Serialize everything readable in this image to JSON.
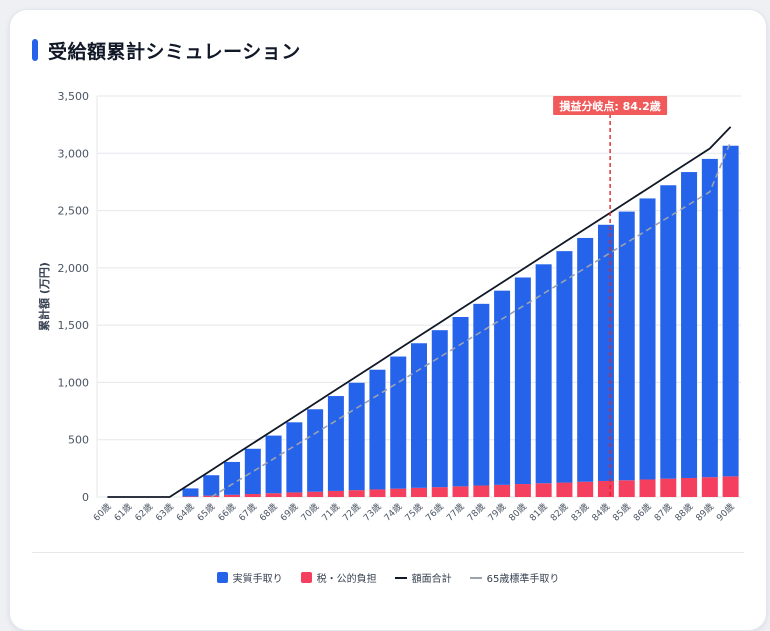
{
  "title": "受給額累計シミュレーション",
  "colors": {
    "net": "#2563eb",
    "tax": "#f43f5e",
    "gross": "#111827",
    "standard": "#9ca3af",
    "breakeven": "#dc2626",
    "breakeven_label_bg": "#f05a5a"
  },
  "chart_data": {
    "type": "bar",
    "ylabel": "累計額 (万円)",
    "ylim": [
      0,
      3500
    ],
    "yticks": [
      0,
      500,
      1000,
      1500,
      2000,
      2500,
      3000,
      3500
    ],
    "ytick_labels": [
      "0",
      "500",
      "1,000",
      "1,500",
      "2,000",
      "2,500",
      "3,000",
      "3,500"
    ],
    "grid": true,
    "legend_position": "bottom",
    "categories": [
      "60歳",
      "61歳",
      "62歳",
      "63歳",
      "64歳",
      "65歳",
      "66歳",
      "67歳",
      "68歳",
      "69歳",
      "70歳",
      "71歳",
      "72歳",
      "73歳",
      "74歳",
      "75歳",
      "76歳",
      "77歳",
      "78歳",
      "79歳",
      "80歳",
      "81歳",
      "82歳",
      "83歳",
      "84歳",
      "85歳",
      "86歳",
      "87歳",
      "88歳",
      "89歳",
      "90歳"
    ],
    "series": [
      {
        "name": "実質手取り",
        "kind": "bar-stack",
        "values": [
          0,
          0,
          0,
          0,
          70,
          178,
          287,
          395,
          503,
          612,
          720,
          828,
          937,
          1045,
          1153,
          1262,
          1370,
          1478,
          1586,
          1695,
          1803,
          1911,
          2020,
          2128,
          2236,
          2345,
          2453,
          2561,
          2670,
          2778,
          2886
        ]
      },
      {
        "name": "税・公的負担",
        "kind": "bar-stack",
        "values": [
          0,
          0,
          0,
          0,
          5,
          12,
          19,
          26,
          33,
          40,
          46,
          53,
          60,
          66,
          73,
          80,
          86,
          93,
          100,
          106,
          113,
          120,
          126,
          133,
          140,
          146,
          153,
          160,
          166,
          173,
          180
        ]
      },
      {
        "name": "額面合計",
        "kind": "line",
        "values": [
          0,
          0,
          0,
          0,
          117,
          234,
          351,
          468,
          585,
          702,
          819,
          936,
          1053,
          1170,
          1287,
          1404,
          1521,
          1638,
          1755,
          1872,
          1989,
          2106,
          2223,
          2340,
          2457,
          2574,
          2691,
          2808,
          2925,
          3042,
          3230
        ]
      },
      {
        "name": "65歳標準手取り",
        "kind": "line-dashed",
        "values": [
          null,
          null,
          null,
          null,
          null,
          0,
          111,
          222,
          333,
          444,
          555,
          666,
          777,
          888,
          999,
          1110,
          1221,
          1332,
          1443,
          1554,
          1665,
          1776,
          1887,
          1998,
          2109,
          2220,
          2331,
          2442,
          2553,
          2664,
          3100
        ]
      }
    ],
    "annotations": [
      {
        "label": "損益分岐点: 84.2歳",
        "x": 84.2
      }
    ]
  }
}
